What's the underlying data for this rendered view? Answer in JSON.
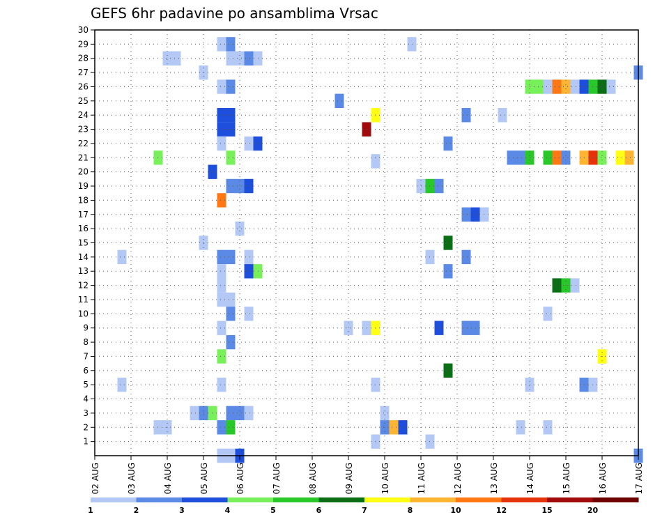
{
  "chart_data": {
    "type": "heatmap",
    "title": "GEFS 6hr padavine po ansamblima Vrsac",
    "xlabel": "",
    "ylabel": "",
    "x_ticks": [
      "02 AUG",
      "03 AUG",
      "04 AUG",
      "05 AUG",
      "06 AUG",
      "07 AUG",
      "08 AUG",
      "09 AUG",
      "10 AUG",
      "11 AUG",
      "12 AUG",
      "13 AUG",
      "14 AUG",
      "15 AUG",
      "16 AUG",
      "17 AUG"
    ],
    "y_ticks": [
      "1",
      "2",
      "3",
      "4",
      "5",
      "6",
      "7",
      "8",
      "9",
      "10",
      "11",
      "12",
      "13",
      "14",
      "15",
      "16",
      "17",
      "18",
      "19",
      "20",
      "21",
      "22",
      "23",
      "24",
      "25",
      "26",
      "27",
      "28",
      "29",
      "30"
    ],
    "xlim_days": [
      0,
      15
    ],
    "ylim": [
      0,
      30
    ],
    "time_step_hours": 6,
    "grid": true,
    "colorbar": {
      "labels": [
        "1",
        "2",
        "3",
        "4",
        "5",
        "6",
        "7",
        "8",
        "10",
        "12",
        "15",
        "20"
      ],
      "colors": [
        "#b4c8f5",
        "#5a8ae6",
        "#1e4fdc",
        "#78f05a",
        "#28c828",
        "#0a6e14",
        "#ffff14",
        "#ffb432",
        "#ff7814",
        "#e6320a",
        "#a00a0a",
        "#6e0000"
      ]
    },
    "cells": [
      {
        "day": 3.5,
        "member": 29,
        "level": 1
      },
      {
        "day": 3.75,
        "member": 29,
        "level": 2
      },
      {
        "day": 8.75,
        "member": 29,
        "level": 1
      },
      {
        "day": 2.0,
        "member": 28,
        "level": 1
      },
      {
        "day": 2.25,
        "member": 28,
        "level": 1
      },
      {
        "day": 3.75,
        "member": 28,
        "level": 1
      },
      {
        "day": 4.0,
        "member": 28,
        "level": 1
      },
      {
        "day": 4.25,
        "member": 28,
        "level": 2
      },
      {
        "day": 4.5,
        "member": 28,
        "level": 1
      },
      {
        "day": 3.0,
        "member": 27,
        "level": 1
      },
      {
        "day": 15.0,
        "member": 27,
        "level": 2
      },
      {
        "day": 3.5,
        "member": 26,
        "level": 1
      },
      {
        "day": 3.75,
        "member": 26,
        "level": 2
      },
      {
        "day": 12.0,
        "member": 26,
        "level": 4
      },
      {
        "day": 12.25,
        "member": 26,
        "level": 4
      },
      {
        "day": 12.5,
        "member": 26,
        "level": 1
      },
      {
        "day": 12.75,
        "member": 26,
        "level": 9
      },
      {
        "day": 13.0,
        "member": 26,
        "level": 8
      },
      {
        "day": 13.25,
        "member": 26,
        "level": 1
      },
      {
        "day": 13.5,
        "member": 26,
        "level": 3
      },
      {
        "day": 13.75,
        "member": 26,
        "level": 5
      },
      {
        "day": 14.0,
        "member": 26,
        "level": 6
      },
      {
        "day": 14.25,
        "member": 26,
        "level": 1
      },
      {
        "day": 6.75,
        "member": 25,
        "level": 2
      },
      {
        "day": 3.5,
        "member": 24,
        "level": 3
      },
      {
        "day": 3.75,
        "member": 24,
        "level": 3
      },
      {
        "day": 7.75,
        "member": 24,
        "level": 7
      },
      {
        "day": 10.25,
        "member": 24,
        "level": 2
      },
      {
        "day": 11.25,
        "member": 24,
        "level": 1
      },
      {
        "day": 3.5,
        "member": 23,
        "level": 3
      },
      {
        "day": 3.75,
        "member": 23,
        "level": 3
      },
      {
        "day": 7.5,
        "member": 23,
        "level": 11
      },
      {
        "day": 3.5,
        "member": 22,
        "level": 1
      },
      {
        "day": 4.25,
        "member": 22,
        "level": 1
      },
      {
        "day": 4.5,
        "member": 22,
        "level": 3
      },
      {
        "day": 9.75,
        "member": 22,
        "level": 2
      },
      {
        "day": 1.75,
        "member": 21,
        "level": 4
      },
      {
        "day": 3.75,
        "member": 21,
        "level": 4
      },
      {
        "day": 7.75,
        "member": 20.75,
        "level": 1
      },
      {
        "day": 11.5,
        "member": 21,
        "level": 2
      },
      {
        "day": 11.75,
        "member": 21,
        "level": 2
      },
      {
        "day": 12.0,
        "member": 21,
        "level": 5
      },
      {
        "day": 12.5,
        "member": 21,
        "level": 5
      },
      {
        "day": 12.75,
        "member": 21,
        "level": 9
      },
      {
        "day": 13.0,
        "member": 21,
        "level": 2
      },
      {
        "day": 13.5,
        "member": 21,
        "level": 8
      },
      {
        "day": 13.75,
        "member": 21,
        "level": 10
      },
      {
        "day": 14.0,
        "member": 21,
        "level": 4
      },
      {
        "day": 14.5,
        "member": 21,
        "level": 7
      },
      {
        "day": 14.75,
        "member": 21,
        "level": 8
      },
      {
        "day": 3.25,
        "member": 20,
        "level": 3
      },
      {
        "day": 3.75,
        "member": 19,
        "level": 2
      },
      {
        "day": 4.0,
        "member": 19,
        "level": 2
      },
      {
        "day": 4.25,
        "member": 19,
        "level": 3
      },
      {
        "day": 9.0,
        "member": 19,
        "level": 1
      },
      {
        "day": 9.25,
        "member": 19,
        "level": 5
      },
      {
        "day": 9.5,
        "member": 19,
        "level": 2
      },
      {
        "day": 3.5,
        "member": 18,
        "level": 9
      },
      {
        "day": 10.25,
        "member": 17,
        "level": 2
      },
      {
        "day": 10.5,
        "member": 17,
        "level": 3
      },
      {
        "day": 10.75,
        "member": 17,
        "level": 1
      },
      {
        "day": 4.0,
        "member": 16,
        "level": 1
      },
      {
        "day": 3.0,
        "member": 15,
        "level": 1
      },
      {
        "day": 9.75,
        "member": 15,
        "level": 6
      },
      {
        "day": 0.75,
        "member": 14,
        "level": 1
      },
      {
        "day": 3.5,
        "member": 14,
        "level": 2
      },
      {
        "day": 3.75,
        "member": 14,
        "level": 2
      },
      {
        "day": 4.25,
        "member": 14,
        "level": 1
      },
      {
        "day": 9.25,
        "member": 14,
        "level": 1
      },
      {
        "day": 10.25,
        "member": 14,
        "level": 2
      },
      {
        "day": 3.5,
        "member": 13,
        "level": 1
      },
      {
        "day": 4.25,
        "member": 13,
        "level": 3
      },
      {
        "day": 4.5,
        "member": 13,
        "level": 4
      },
      {
        "day": 9.75,
        "member": 13,
        "level": 2
      },
      {
        "day": 3.5,
        "member": 12,
        "level": 1
      },
      {
        "day": 3.5,
        "member": 11,
        "level": 1
      },
      {
        "day": 3.75,
        "member": 11,
        "level": 1
      },
      {
        "day": 12.75,
        "member": 12,
        "level": 6
      },
      {
        "day": 13.0,
        "member": 12,
        "level": 5
      },
      {
        "day": 13.25,
        "member": 12,
        "level": 1
      },
      {
        "day": 3.75,
        "member": 10,
        "level": 2
      },
      {
        "day": 4.25,
        "member": 10,
        "level": 1
      },
      {
        "day": 12.5,
        "member": 10,
        "level": 1
      },
      {
        "day": 3.5,
        "member": 9,
        "level": 1
      },
      {
        "day": 7.0,
        "member": 9,
        "level": 1
      },
      {
        "day": 7.5,
        "member": 9,
        "level": 1
      },
      {
        "day": 7.75,
        "member": 9,
        "level": 7
      },
      {
        "day": 9.5,
        "member": 9,
        "level": 3
      },
      {
        "day": 10.25,
        "member": 9,
        "level": 2
      },
      {
        "day": 10.5,
        "member": 9,
        "level": 2
      },
      {
        "day": 3.75,
        "member": 8,
        "level": 2
      },
      {
        "day": 3.5,
        "member": 7,
        "level": 4
      },
      {
        "day": 14.0,
        "member": 7,
        "level": 7
      },
      {
        "day": 9.75,
        "member": 6,
        "level": 6
      },
      {
        "day": 0.75,
        "member": 5,
        "level": 1
      },
      {
        "day": 3.5,
        "member": 5,
        "level": 1
      },
      {
        "day": 7.75,
        "member": 5,
        "level": 1
      },
      {
        "day": 12.0,
        "member": 5,
        "level": 1
      },
      {
        "day": 13.5,
        "member": 5,
        "level": 2
      },
      {
        "day": 13.75,
        "member": 5,
        "level": 1
      },
      {
        "day": 2.75,
        "member": 3,
        "level": 1
      },
      {
        "day": 3.0,
        "member": 3,
        "level": 2
      },
      {
        "day": 3.25,
        "member": 3,
        "level": 4
      },
      {
        "day": 3.75,
        "member": 3,
        "level": 2
      },
      {
        "day": 4.0,
        "member": 3,
        "level": 2
      },
      {
        "day": 4.25,
        "member": 3,
        "level": 1
      },
      {
        "day": 8.0,
        "member": 3,
        "level": 1
      },
      {
        "day": 1.75,
        "member": 2,
        "level": 1
      },
      {
        "day": 2.0,
        "member": 2,
        "level": 1
      },
      {
        "day": 3.5,
        "member": 2,
        "level": 2
      },
      {
        "day": 3.75,
        "member": 2,
        "level": 5
      },
      {
        "day": 8.0,
        "member": 2,
        "level": 2
      },
      {
        "day": 8.25,
        "member": 2,
        "level": 8
      },
      {
        "day": 8.5,
        "member": 2,
        "level": 3
      },
      {
        "day": 11.75,
        "member": 2,
        "level": 1
      },
      {
        "day": 12.5,
        "member": 2,
        "level": 1
      },
      {
        "day": 7.75,
        "member": 1,
        "level": 1
      },
      {
        "day": 9.25,
        "member": 1,
        "level": 1
      },
      {
        "day": 3.5,
        "member": 0,
        "level": 1
      },
      {
        "day": 3.75,
        "member": 0,
        "level": 1
      },
      {
        "day": 4.0,
        "member": 0,
        "level": 3
      },
      {
        "day": 15.0,
        "member": 0,
        "level": 2
      }
    ]
  }
}
